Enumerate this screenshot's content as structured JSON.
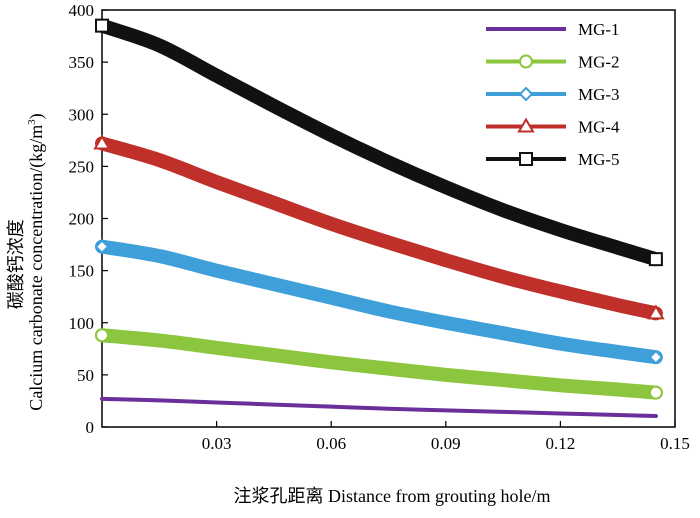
{
  "chart_data": {
    "type": "line",
    "xlabel": "注浆孔距离 Distance from grouting hole/m",
    "ylabel_cn": "碳酸钙浓度",
    "ylabel_en": "Calcium carbonate concentration/(kg/m",
    "ylabel_sup": "3",
    "ylabel_close": ")",
    "xlim": [
      0,
      0.15
    ],
    "ylim": [
      0,
      400
    ],
    "x_ticks": [
      0.03,
      0.06,
      0.09,
      0.12,
      0.15
    ],
    "x_tick_labels": [
      "0.03",
      "0.06",
      "0.09",
      "0.12",
      "0.15"
    ],
    "y_ticks": [
      0,
      50,
      100,
      150,
      200,
      250,
      300,
      350,
      400
    ],
    "y_tick_labels": [
      "0",
      "50",
      "100",
      "150",
      "200",
      "250",
      "300",
      "350",
      "400"
    ],
    "grid": false,
    "legend_position": "top-right",
    "series": [
      {
        "name": "MG-1",
        "color": "#6a2f9a",
        "marker": "none",
        "x": [
          0.0,
          0.015,
          0.03,
          0.045,
          0.06,
          0.075,
          0.09,
          0.105,
          0.12,
          0.135,
          0.145
        ],
        "values": [
          27,
          25.5,
          23.5,
          21.5,
          19.5,
          17.5,
          16,
          14.5,
          13,
          11.5,
          10.5
        ]
      },
      {
        "name": "MG-2",
        "color": "#8cc63e",
        "marker": "circle",
        "x": [
          0.0,
          0.015,
          0.03,
          0.045,
          0.06,
          0.075,
          0.09,
          0.105,
          0.12,
          0.135,
          0.145
        ],
        "values": [
          88,
          83,
          76,
          69,
          62,
          56,
          50,
          45,
          40,
          36,
          33
        ]
      },
      {
        "name": "MG-3",
        "color": "#3f9fd9",
        "marker": "diamond",
        "x": [
          0.0,
          0.015,
          0.03,
          0.045,
          0.06,
          0.075,
          0.09,
          0.105,
          0.12,
          0.135,
          0.145
        ],
        "values": [
          173,
          164,
          150,
          137,
          124,
          111,
          100,
          90,
          80,
          72,
          67
        ]
      },
      {
        "name": "MG-4",
        "color": "#c0302a",
        "marker": "triangle",
        "x": [
          0.0,
          0.015,
          0.03,
          0.045,
          0.06,
          0.075,
          0.09,
          0.105,
          0.12,
          0.135,
          0.145
        ],
        "values": [
          272,
          256,
          235,
          215,
          195,
          177,
          160,
          144,
          130,
          117,
          109
        ]
      },
      {
        "name": "MG-5",
        "color": "#111111",
        "marker": "square",
        "x": [
          0.0,
          0.015,
          0.03,
          0.045,
          0.06,
          0.075,
          0.09,
          0.105,
          0.12,
          0.135,
          0.145
        ],
        "values": [
          385,
          366,
          337,
          308,
          280,
          254,
          230,
          208,
          189,
          172,
          161
        ]
      }
    ]
  }
}
